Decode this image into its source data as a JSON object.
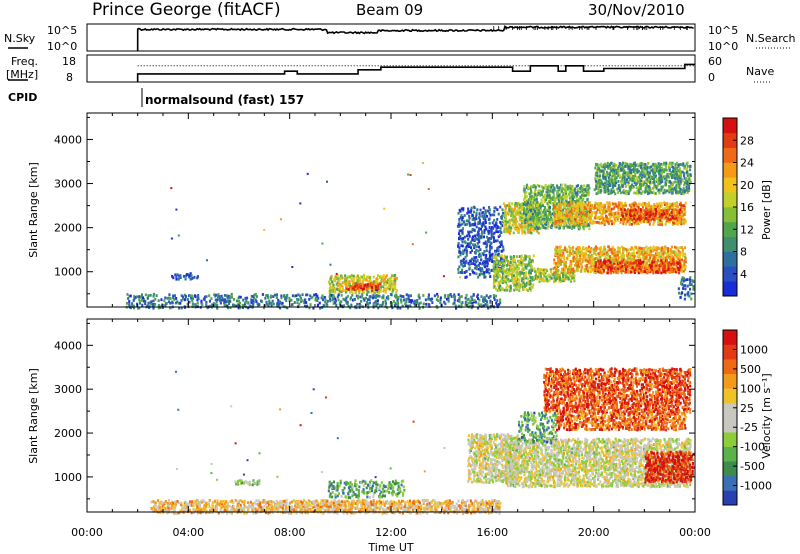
{
  "header": {
    "station": "Prince George (fitACF)",
    "beam": "Beam 09",
    "date": "30/Nov/2010"
  },
  "side_labels": {
    "nsky": "N.Sky",
    "freq_line1": "Freq.",
    "freq_line2": "[MHz]",
    "cpid": "CPID",
    "nsearch": "N.Search",
    "nave": "Nave"
  },
  "cpid_label": "normalsound (fast)  157",
  "chart_data": [
    {
      "type": "line",
      "id": "noise",
      "ytick_labels": [
        "10^5",
        "10^0"
      ],
      "right_tick_labels": [
        "10^5",
        "10^0"
      ],
      "series": [
        {
          "values_t": [
            2.0,
            2.1,
            9.4,
            9.5,
            11.5,
            12.3,
            16.5,
            24.0
          ],
          "values": [
            0.82,
            0.8,
            0.8,
            0.68,
            0.75,
            0.76,
            0.88,
            0.86
          ]
        }
      ]
    },
    {
      "type": "line",
      "id": "freq_nave",
      "ylim": [
        8,
        18
      ],
      "ytick_labels": [
        "18",
        "8"
      ],
      "right_ylim": [
        0,
        60
      ],
      "right_tick_labels": [
        "60",
        "0"
      ],
      "freq_steps": [
        [
          2.0,
          11.0
        ],
        [
          7.8,
          12.0
        ],
        [
          8.3,
          11.0
        ],
        [
          10.7,
          12.5
        ],
        [
          11.6,
          13.5
        ],
        [
          16.8,
          12.0
        ],
        [
          17.5,
          14.0
        ],
        [
          18.6,
          12.0
        ],
        [
          18.9,
          14.0
        ],
        [
          19.6,
          12.0
        ],
        [
          20.4,
          13.0
        ],
        [
          23.6,
          14.5
        ],
        [
          24.0,
          14.5
        ]
      ],
      "nave_line": 36
    },
    {
      "type": "heatmap",
      "id": "power",
      "xlim": [
        0,
        24
      ],
      "ylim": [
        200,
        4600
      ],
      "ylabel": "Slant Range [km]",
      "yticks": [
        1000,
        2000,
        3000,
        4000
      ],
      "colorbar": {
        "label": "Power [dB]",
        "ticks": [
          "28",
          "24",
          "20",
          "16",
          "12",
          "8",
          "4"
        ],
        "colors": [
          "#1a2bd8",
          "#2a4fc0",
          "#2f6fa0",
          "#3d8f6e",
          "#51a64d",
          "#86bf36",
          "#c2d12a",
          "#f0c21a",
          "#f59a16",
          "#ee6a14",
          "#e23a12",
          "#d61010"
        ]
      },
      "regions": [
        {
          "t": [
            3.2,
            4.4
          ],
          "r": [
            850,
            1000
          ],
          "level": 0.1
        },
        {
          "t": [
            1.5,
            16.3
          ],
          "r": [
            200,
            520
          ],
          "level": 0.22
        },
        {
          "t": [
            9.5,
            12.2
          ],
          "r": [
            550,
            950
          ],
          "level": 0.55
        },
        {
          "t": [
            10.2,
            11.6
          ],
          "r": [
            620,
            760
          ],
          "level": 0.85
        },
        {
          "t": [
            14.6,
            16.4
          ],
          "r": [
            900,
            2500
          ],
          "level": 0.15
        },
        {
          "t": [
            16.0,
            17.6
          ],
          "r": [
            600,
            1400
          ],
          "level": 0.45
        },
        {
          "t": [
            16.4,
            17.8
          ],
          "r": [
            1900,
            2600
          ],
          "level": 0.55
        },
        {
          "t": [
            17.6,
            19.2
          ],
          "r": [
            800,
            1100
          ],
          "level": 0.5
        },
        {
          "t": [
            17.2,
            19.8
          ],
          "r": [
            2000,
            3000
          ],
          "level": 0.4
        },
        {
          "t": [
            18.4,
            23.6
          ],
          "r": [
            1000,
            1600
          ],
          "level": 0.65
        },
        {
          "t": [
            20.0,
            23.4
          ],
          "r": [
            1000,
            1300
          ],
          "level": 0.85
        },
        {
          "t": [
            18.4,
            23.6
          ],
          "r": [
            2100,
            2600
          ],
          "level": 0.68
        },
        {
          "t": [
            21.0,
            23.4
          ],
          "r": [
            2200,
            2450
          ],
          "level": 0.85
        },
        {
          "t": [
            20.0,
            23.8
          ],
          "r": [
            2800,
            3500
          ],
          "level": 0.35
        },
        {
          "t": [
            23.3,
            23.9
          ],
          "r": [
            400,
            900
          ],
          "level": 0.2
        }
      ]
    },
    {
      "type": "heatmap",
      "id": "velocity",
      "xlim": [
        0,
        24
      ],
      "ylim": [
        200,
        4600
      ],
      "ylabel": "Slant Range [km]",
      "yticks": [
        1000,
        2000,
        3000,
        4000
      ],
      "xticks": [
        "00:00",
        "04:00",
        "08:00",
        "12:00",
        "16:00",
        "20:00",
        "00:00"
      ],
      "xlabel": "Time UT",
      "colorbar": {
        "label": "Velocity [m s⁻¹]",
        "ticks": [
          "1000",
          "500",
          "100",
          "25",
          "-25",
          "-100",
          "-500",
          "-1000"
        ],
        "colors": [
          "#2a3fb0",
          "#3a6fb8",
          "#3e8c4c",
          "#5ab24a",
          "#8dcc3a",
          "#c8c8c0",
          "#c8c8c0",
          "#f0c22a",
          "#f39a1c",
          "#ee6a14",
          "#e23a12",
          "#d61010"
        ]
      },
      "regions": [
        {
          "t": [
            2.5,
            16.3
          ],
          "r": [
            200,
            500
          ],
          "level": 0.62
        },
        {
          "t": [
            9.5,
            12.5
          ],
          "r": [
            550,
            950
          ],
          "level": 0.3
        },
        {
          "t": [
            5.8,
            6.8
          ],
          "r": [
            850,
            950
          ],
          "level": 0.35
        },
        {
          "t": [
            15.0,
            17.0
          ],
          "r": [
            900,
            2000
          ],
          "level": 0.5
        },
        {
          "t": [
            16.5,
            23.8
          ],
          "r": [
            800,
            1900
          ],
          "level": 0.5
        },
        {
          "t": [
            17.0,
            18.5
          ],
          "r": [
            1800,
            2500
          ],
          "level": 0.25
        },
        {
          "t": [
            18.5,
            23.6
          ],
          "r": [
            2100,
            2500
          ],
          "level": 0.8
        },
        {
          "t": [
            18.0,
            23.8
          ],
          "r": [
            2500,
            3500
          ],
          "level": 0.85
        },
        {
          "t": [
            22.0,
            23.9
          ],
          "r": [
            900,
            1600
          ],
          "level": 0.95
        }
      ]
    }
  ]
}
